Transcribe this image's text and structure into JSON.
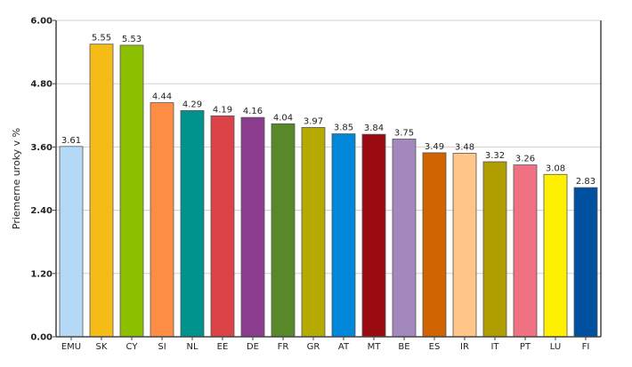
{
  "chart_data": {
    "type": "bar",
    "ylabel": "Priemerne uroky v %",
    "xlabel": "",
    "ylim": [
      0,
      6
    ],
    "yticks": [
      "0.00",
      "1.20",
      "2.40",
      "3.60",
      "4.80",
      "6.00"
    ],
    "grid": true,
    "categories": [
      "EMU",
      "SK",
      "CY",
      "SI",
      "NL",
      "EE",
      "DE",
      "FR",
      "GR",
      "AT",
      "MT",
      "BE",
      "ES",
      "IR",
      "IT",
      "PT",
      "LU",
      "FI"
    ],
    "values": [
      3.61,
      5.55,
      5.53,
      4.44,
      4.29,
      4.19,
      4.16,
      4.04,
      3.97,
      3.85,
      3.84,
      3.75,
      3.49,
      3.48,
      3.32,
      3.26,
      3.08,
      2.83
    ],
    "data_labels": [
      "3.61",
      "5.55",
      "5.53",
      "4.44",
      "4.29",
      "4.19",
      "4.16",
      "4.04",
      "3.97",
      "3.85",
      "3.84",
      "3.75",
      "3.49",
      "3.48",
      "3.32",
      "3.26",
      "3.08",
      "2.83"
    ],
    "colors": [
      "#b3d9f7",
      "#f5bb16",
      "#8cbf00",
      "#fd8c45",
      "#00928c",
      "#db4346",
      "#8b3c8c",
      "#57882a",
      "#b6aa00",
      "#0087d9",
      "#9a0b11",
      "#a388bd",
      "#cf6400",
      "#ffc589",
      "#b09d00",
      "#f07282",
      "#ffef00",
      "#0050a0"
    ]
  }
}
